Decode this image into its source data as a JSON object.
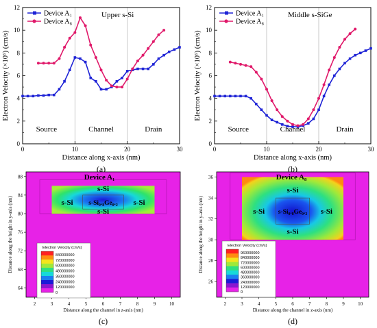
{
  "chart_data": [
    {
      "type": "line",
      "annotation": "Upper s-Si",
      "xlabel": "Distance along x-axis (nm)",
      "ylabel": "Electron Velocity (×10⁶) (cm/s)",
      "xlim": [
        0,
        30
      ],
      "ylim": [
        0,
        12
      ],
      "xticks": [
        "0",
        "10",
        "20",
        "30"
      ],
      "yticks": [
        "0",
        "2",
        "4",
        "6",
        "8",
        "10",
        "12"
      ],
      "regions": [
        "Source",
        "Channel",
        "Drain"
      ],
      "caption": "(a)",
      "series": [
        {
          "name": "Device A₁",
          "color": "#1f24d6",
          "marker": "square",
          "x": [
            0,
            1,
            2,
            3,
            4,
            5,
            6,
            7,
            8,
            9,
            10,
            11,
            12,
            13,
            14,
            15,
            16,
            17,
            18,
            19,
            20,
            21,
            22,
            23,
            24,
            25,
            26,
            27,
            28,
            29,
            30
          ],
          "y": [
            4.2,
            4.2,
            4.2,
            4.25,
            4.25,
            4.3,
            4.3,
            4.8,
            5.5,
            6.5,
            7.6,
            7.5,
            7.2,
            5.8,
            5.5,
            4.8,
            4.8,
            5.0,
            5.5,
            5.8,
            6.4,
            6.5,
            6.6,
            6.6,
            6.6,
            7.0,
            7.5,
            7.8,
            8.1,
            8.3,
            8.5
          ]
        },
        {
          "name": "Device A₈",
          "color": "#e0196a",
          "marker": "circle",
          "x": [
            3,
            4,
            5,
            6,
            7,
            8,
            9,
            10,
            11,
            12,
            13,
            14,
            15,
            16,
            17,
            18,
            19,
            20,
            21,
            22,
            23,
            24,
            25,
            26,
            27
          ],
          "y": [
            7.1,
            7.1,
            7.1,
            7.1,
            7.5,
            8.5,
            9.3,
            9.8,
            11.1,
            10.4,
            8.7,
            7.6,
            6.5,
            5.6,
            5.1,
            5.0,
            5.0,
            5.7,
            6.6,
            7.3,
            7.8,
            8.4,
            9.0,
            9.6,
            10.0
          ]
        }
      ]
    },
    {
      "type": "line",
      "annotation": "Middle s-SiGe",
      "xlabel": "Distance along x-axis (nm)",
      "ylabel": "Electron Velocity (×10⁶) (cm/s)",
      "xlim": [
        0,
        30
      ],
      "ylim": [
        0,
        12
      ],
      "xticks": [
        "0",
        "10",
        "20",
        "30"
      ],
      "yticks": [
        "0",
        "2",
        "4",
        "6",
        "8",
        "10",
        "12"
      ],
      "regions": [
        "Source",
        "Channel",
        "Drain"
      ],
      "caption": "(b)",
      "series": [
        {
          "name": "Device A₁",
          "color": "#1f24d6",
          "marker": "square",
          "x": [
            0,
            1,
            2,
            3,
            4,
            5,
            6,
            7,
            8,
            9,
            10,
            11,
            12,
            13,
            14,
            15,
            16,
            17,
            18,
            19,
            20,
            21,
            22,
            23,
            24,
            25,
            26,
            27,
            28,
            29,
            30
          ],
          "y": [
            4.2,
            4.2,
            4.2,
            4.2,
            4.2,
            4.2,
            4.2,
            4.0,
            3.5,
            3.0,
            2.5,
            2.1,
            1.9,
            1.7,
            1.55,
            1.5,
            1.5,
            1.6,
            1.8,
            2.2,
            3.0,
            4.2,
            5.2,
            6.0,
            6.6,
            7.1,
            7.5,
            7.8,
            8.0,
            8.2,
            8.4
          ]
        },
        {
          "name": "Device A₈",
          "color": "#e0196a",
          "marker": "circle",
          "x": [
            3,
            4,
            5,
            6,
            7,
            8,
            9,
            10,
            11,
            12,
            13,
            14,
            15,
            16,
            17,
            18,
            19,
            20,
            21,
            22,
            23,
            24,
            25,
            26,
            27
          ],
          "y": [
            7.2,
            7.1,
            7.0,
            6.9,
            6.8,
            6.3,
            5.7,
            4.8,
            3.8,
            3.0,
            2.4,
            2.0,
            1.7,
            1.6,
            1.7,
            2.2,
            3.0,
            4.0,
            5.2,
            6.5,
            7.6,
            8.5,
            9.2,
            9.7,
            10.1
          ]
        }
      ]
    },
    {
      "type": "heatmap",
      "title": "Device A₁",
      "xlabel": "Distance along the channel in z-axis (nm)",
      "ylabel": "Distance along the height in y-axis (nm)",
      "xticks": [
        "2",
        "3",
        "4",
        "5",
        "6",
        "7",
        "8",
        "9",
        "10"
      ],
      "yticks": [
        "64",
        "68",
        "72",
        "76",
        "80",
        "84",
        "88"
      ],
      "region_labels": [
        "s-Si",
        "s-Si",
        "s-Si",
        "s-Si",
        "s-Si₀.₈Ge₀.₂"
      ],
      "colorbar_title": "Electron Velocity (cm/s)",
      "colorbar_values": [
        "840000000",
        "720000000",
        "600000000",
        "480000000",
        "360000000",
        "240000000",
        "120000000",
        "0"
      ],
      "caption": "(c)"
    },
    {
      "type": "heatmap",
      "title": "Device A₈",
      "xlabel": "Distance along the channel in z-axis (nm)",
      "ylabel": "Distance along the height in y-axis (nm)",
      "xticks": [
        "2",
        "3",
        "4",
        "5",
        "6",
        "7",
        "8",
        "9",
        "10"
      ],
      "yticks": [
        "26",
        "28",
        "30",
        "32",
        "34",
        "36"
      ],
      "region_labels": [
        "s-Si",
        "s-Si",
        "s-Si",
        "s-Si",
        "s-Si₀.₈Ge₀.₂"
      ],
      "colorbar_title": "Electron Velocity (cm/s)",
      "colorbar_values": [
        "960000000",
        "840000000",
        "720000000",
        "600000000",
        "480000000",
        "360000000",
        "240000000",
        "120000000",
        "0"
      ],
      "caption": "(d)"
    }
  ]
}
